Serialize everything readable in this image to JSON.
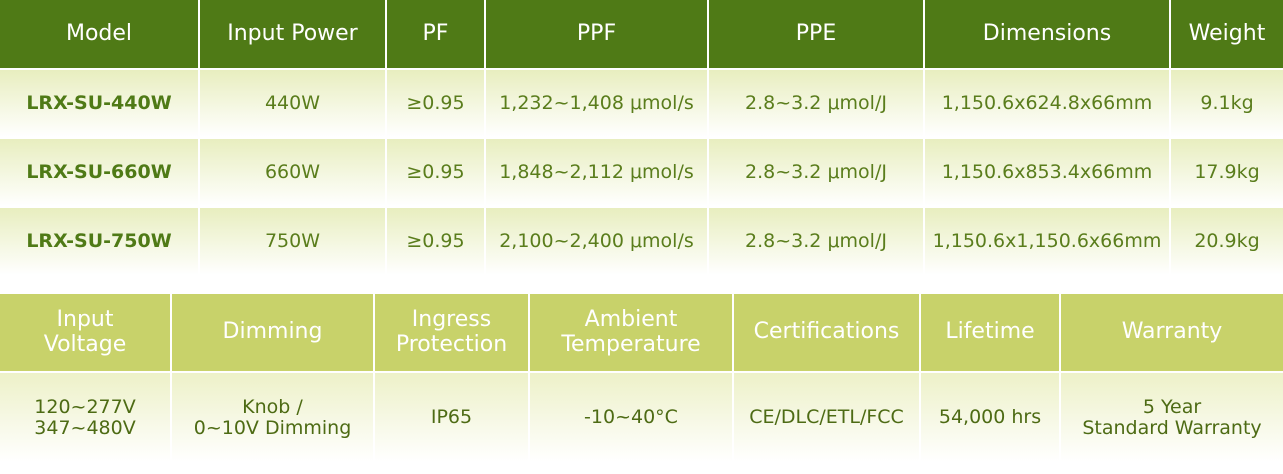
{
  "table1": {
    "headers": [
      "Model",
      "Input Power",
      "PF",
      "PPF",
      "PPE",
      "Dimensions",
      "Weight"
    ],
    "rows": [
      [
        "LRX-SU-440W",
        "440W",
        "≥0.95",
        "1,232~1,408 μmol/s",
        "2.8~3.2 μmol/J",
        "1,150.6x624.8x66mm",
        "9.1kg"
      ],
      [
        "LRX-SU-660W",
        "660W",
        "≥0.95",
        "1,848~2,112 μmol/s",
        "2.8~3.2 μmol/J",
        "1,150.6x853.4x66mm",
        "17.9kg"
      ],
      [
        "LRX-SU-750W",
        "750W",
        "≥0.95",
        "2,100~2,400 μmol/s",
        "2.8~3.2 μmol/J",
        "1,150.6x1,150.6x66mm",
        "20.9kg"
      ]
    ]
  },
  "table2": {
    "headers": [
      [
        "Input",
        "Voltage"
      ],
      [
        "Dimming"
      ],
      [
        "Ingress",
        "Protection"
      ],
      [
        "Ambient",
        "Temperature"
      ],
      [
        "Certifications"
      ],
      [
        "Lifetime"
      ],
      [
        "Warranty"
      ]
    ],
    "values": [
      [
        "120~277V",
        "347~480V"
      ],
      [
        "Knob /",
        "0~10V Dimming"
      ],
      [
        "IP65"
      ],
      [
        "-10~40°C"
      ],
      [
        "CE/DLC/ETL/FCC"
      ],
      [
        "54,000 hrs"
      ],
      [
        "5 Year",
        "Standard Warranty"
      ]
    ]
  },
  "colors": {
    "header1_bg": "#4f7a16",
    "header2_bg": "#c8d26a",
    "model_text": "#4f7a16"
  }
}
